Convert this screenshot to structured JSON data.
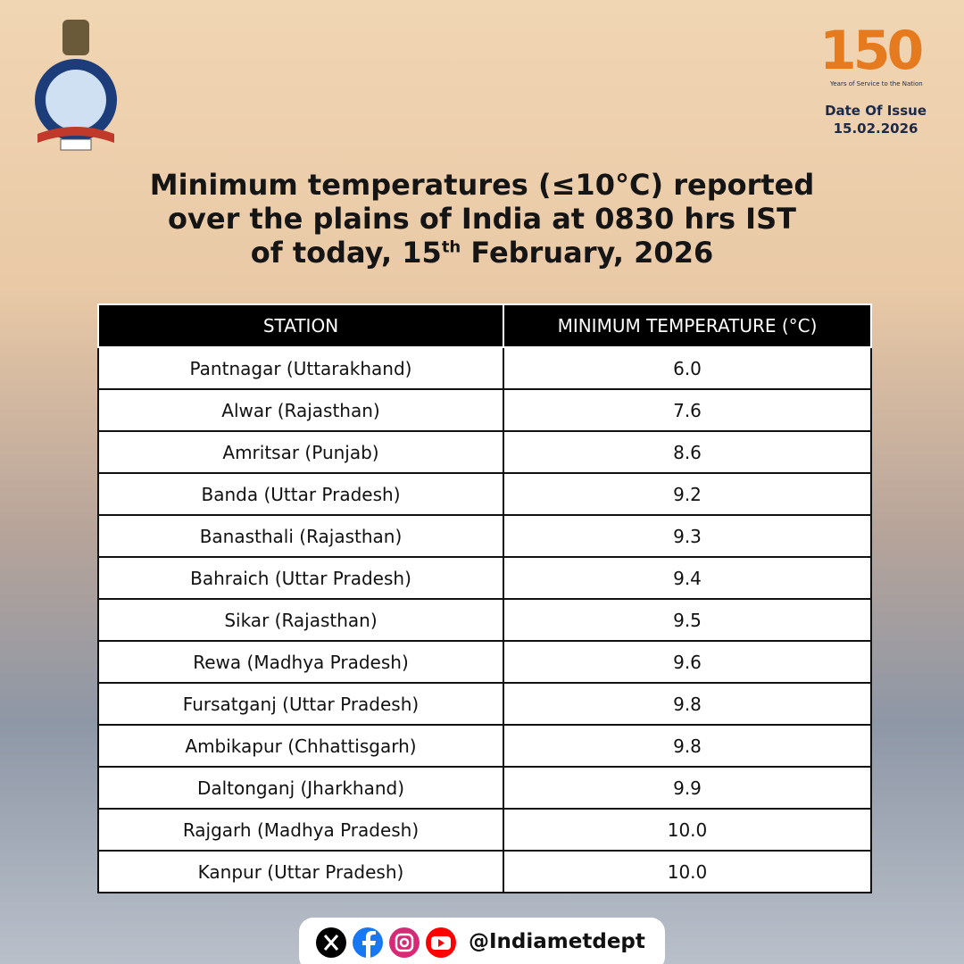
{
  "header": {
    "anniversary": "150",
    "anniversary_tagline": "Years of Service to the Nation",
    "issue_label": "Date Of Issue",
    "issue_date": "15.02.2026"
  },
  "title": {
    "line1": "Minimum temperatures (≤10°C) reported",
    "line2": "over the plains of India at 0830 hrs IST",
    "line3_start": "of today, 15",
    "line3_sup": "th",
    "line3_end": " February, 2026"
  },
  "table": {
    "columns": [
      "STATION",
      "MINIMUM TEMPERATURE (°C)"
    ],
    "rows": [
      [
        "Pantnagar (Uttarakhand)",
        "6.0"
      ],
      [
        "Alwar (Rajasthan)",
        "7.6"
      ],
      [
        "Amritsar (Punjab)",
        "8.6"
      ],
      [
        "Banda (Uttar Pradesh)",
        "9.2"
      ],
      [
        "Banasthali (Rajasthan)",
        "9.3"
      ],
      [
        "Bahraich (Uttar Pradesh)",
        "9.4"
      ],
      [
        "Sikar (Rajasthan)",
        "9.5"
      ],
      [
        "Rewa (Madhya Pradesh)",
        "9.6"
      ],
      [
        "Fursatganj (Uttar Pradesh)",
        "9.8"
      ],
      [
        "Ambikapur (Chhattisgarh)",
        "9.8"
      ],
      [
        "Daltonganj (Jharkhand)",
        "9.9"
      ],
      [
        "Rajgarh (Madhya Pradesh)",
        "10.0"
      ],
      [
        "Kanpur (Uttar Pradesh)",
        "10.0"
      ]
    ]
  },
  "footer": {
    "handle": "@Indiametdept"
  }
}
